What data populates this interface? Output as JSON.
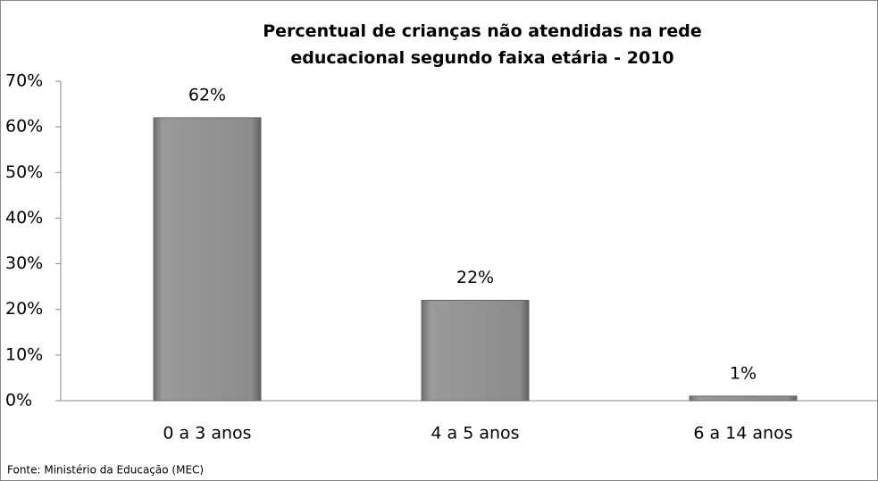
{
  "chart_data": {
    "type": "bar",
    "title": "Percentual de crianças não atendidas na rede educacional segundo faixa etária - 2010",
    "categories": [
      "0 a 3 anos",
      "4 a 5 anos",
      "6 a 14 anos"
    ],
    "values": [
      62,
      22,
      1
    ],
    "value_labels": [
      "62%",
      "22%",
      "1%"
    ],
    "color": "#8c8c8c",
    "ylim": [
      0,
      70
    ],
    "yticks": [
      {
        "value": 0,
        "label": "0%"
      },
      {
        "value": 10,
        "label": "10%"
      },
      {
        "value": 20,
        "label": "20%"
      },
      {
        "value": 30,
        "label": "30%"
      },
      {
        "value": 40,
        "label": "40%"
      },
      {
        "value": 50,
        "label": "50%"
      },
      {
        "value": 60,
        "label": "60%"
      },
      {
        "value": 70,
        "label": "70%"
      }
    ],
    "grid": false,
    "source": "Fonte: Ministério da Educação (MEC)"
  }
}
